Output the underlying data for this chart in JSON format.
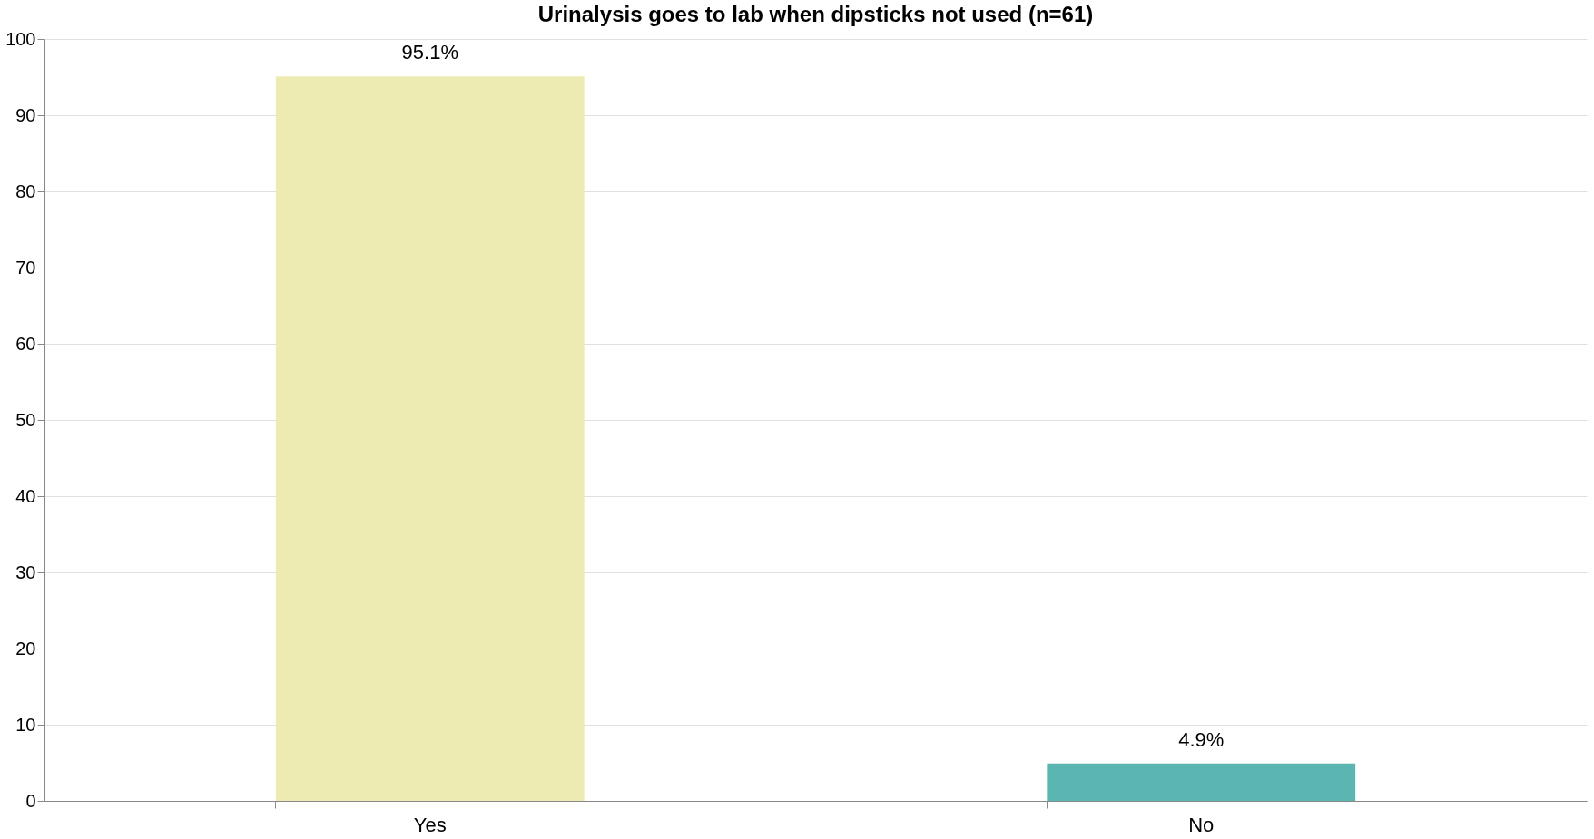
{
  "chart_data": {
    "type": "bar",
    "title": "Urinalysis goes to lab when dipsticks not used (n=61)",
    "categories": [
      "Yes",
      "No"
    ],
    "values": [
      95.1,
      4.9
    ],
    "colors": [
      "#eeebb2",
      "#5bb5b0"
    ],
    "value_labels": [
      "95.1%",
      "4.9%"
    ],
    "ylim": [
      0,
      100
    ],
    "yticks": [
      0,
      10,
      20,
      30,
      40,
      50,
      60,
      70,
      80,
      90,
      100
    ],
    "grid": "y"
  }
}
